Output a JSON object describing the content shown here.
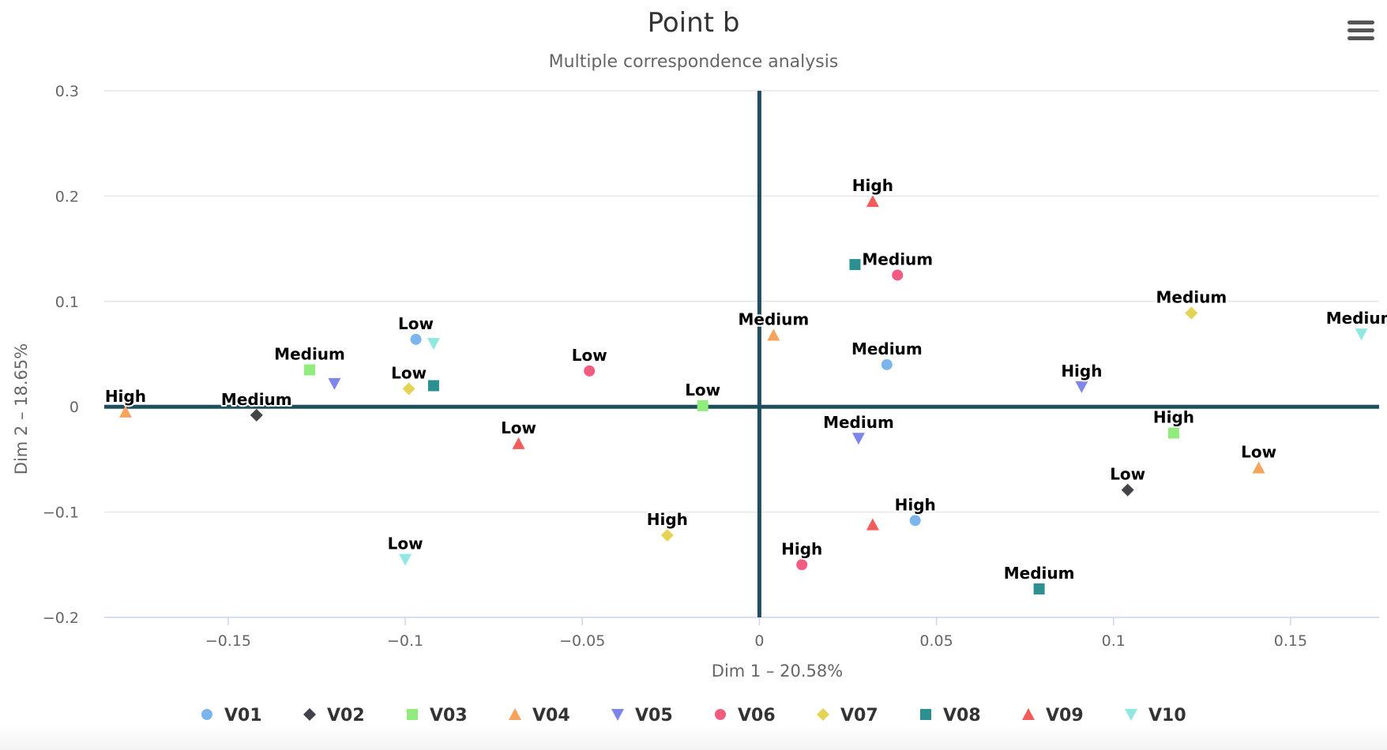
{
  "colors": {
    "V01": "#7cb5ec",
    "V02": "#434348",
    "V03": "#90ed7d",
    "V04": "#f7a35c",
    "V05": "#8085e9",
    "V06": "#f15c80",
    "V07": "#e4d354",
    "V08": "#2b908f",
    "V09": "#f45b5b",
    "V10": "#91e8e1"
  },
  "icons": {
    "menu": "hamburger-menu-icon"
  },
  "chart_data": {
    "type": "scatter",
    "title": "Point b",
    "subtitle": "Multiple correspondence analysis",
    "xlabel": "Dim 1 – 20.58%",
    "ylabel": "Dim 2 – 18.65%",
    "xlim": [
      -0.185,
      0.175
    ],
    "ylim": [
      -0.2,
      0.3
    ],
    "xticks": [
      -0.15,
      -0.1,
      -0.05,
      0,
      0.05,
      0.1,
      0.15
    ],
    "xtick_labels": [
      "−0.15",
      "−0.1",
      "−0.05",
      "0",
      "0.05",
      "0.1",
      "0.15"
    ],
    "yticks": [
      -0.2,
      -0.1,
      0,
      0.1,
      0.2,
      0.3
    ],
    "ytick_labels": [
      "−0.2",
      "−0.1",
      "0",
      "0.1",
      "0.2",
      "0.3"
    ],
    "grid": true,
    "legend_position": "bottom",
    "series": [
      {
        "name": "V01",
        "marker": "circle",
        "points": [
          {
            "label": "Low",
            "x": -0.097,
            "y": 0.064
          },
          {
            "label": "Medium",
            "x": 0.036,
            "y": 0.04
          },
          {
            "label": "High",
            "x": 0.044,
            "y": -0.108
          }
        ]
      },
      {
        "name": "V02",
        "marker": "diamond",
        "points": [
          {
            "label": "Medium",
            "x": -0.142,
            "y": -0.008
          },
          {
            "label": "Low",
            "x": 0.104,
            "y": -0.079
          }
        ]
      },
      {
        "name": "V03",
        "marker": "square",
        "points": [
          {
            "label": "Medium",
            "x": -0.127,
            "y": 0.035
          },
          {
            "label": "Low",
            "x": -0.016,
            "y": 0.001
          },
          {
            "label": "High",
            "x": 0.117,
            "y": -0.025
          }
        ]
      },
      {
        "name": "V04",
        "marker": "triangle",
        "points": [
          {
            "label": "High",
            "x": -0.179,
            "y": -0.005
          },
          {
            "label": "Medium",
            "x": 0.004,
            "y": 0.068
          },
          {
            "label": "Low",
            "x": 0.141,
            "y": -0.058
          }
        ]
      },
      {
        "name": "V05",
        "marker": "triangle-down",
        "points": [
          {
            "label": "",
            "x": -0.12,
            "y": 0.022
          },
          {
            "label": "Medium",
            "x": 0.028,
            "y": -0.03
          },
          {
            "label": "High",
            "x": 0.091,
            "y": 0.019
          }
        ]
      },
      {
        "name": "V06",
        "marker": "circle",
        "points": [
          {
            "label": "Low",
            "x": -0.048,
            "y": 0.034
          },
          {
            "label": "Medium",
            "x": 0.039,
            "y": 0.125
          },
          {
            "label": "High",
            "x": 0.012,
            "y": -0.15
          }
        ]
      },
      {
        "name": "V07",
        "marker": "diamond",
        "points": [
          {
            "label": "Low",
            "x": -0.099,
            "y": 0.017
          },
          {
            "label": "High",
            "x": -0.026,
            "y": -0.122
          },
          {
            "label": "Medium",
            "x": 0.122,
            "y": 0.089
          }
        ]
      },
      {
        "name": "V08",
        "marker": "square",
        "points": [
          {
            "label": "",
            "x": -0.092,
            "y": 0.02
          },
          {
            "label": "",
            "x": 0.027,
            "y": 0.135
          },
          {
            "label": "Medium",
            "x": 0.079,
            "y": -0.173
          }
        ]
      },
      {
        "name": "V09",
        "marker": "triangle",
        "points": [
          {
            "label": "High",
            "x": 0.032,
            "y": 0.195
          },
          {
            "label": "Low",
            "x": -0.068,
            "y": -0.035
          },
          {
            "label": "",
            "x": 0.032,
            "y": -0.112
          }
        ]
      },
      {
        "name": "V10",
        "marker": "triangle-down",
        "points": [
          {
            "label": "",
            "x": -0.092,
            "y": 0.06
          },
          {
            "label": "Low",
            "x": -0.1,
            "y": -0.145
          },
          {
            "label": "Medium",
            "x": 0.17,
            "y": 0.069
          }
        ]
      }
    ]
  }
}
